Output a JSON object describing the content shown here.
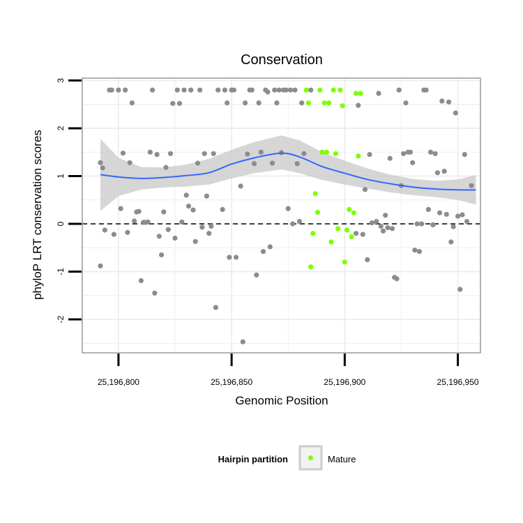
{
  "chart_data": {
    "type": "scatter",
    "title": "Conservation",
    "xlabel": "Genomic Position",
    "ylabel": "phyloP LRT conservation scores",
    "xlim": [
      25196784,
      25196960
    ],
    "ylim": [
      -2.7,
      3.05
    ],
    "xticks": [
      25196800,
      25196850,
      25196900,
      25196950
    ],
    "xtick_labels": [
      "25,196,800",
      "25,196,850",
      "25,196,900",
      "25,196,950"
    ],
    "yticks": [
      -2,
      -1,
      0,
      1,
      2,
      3
    ],
    "ytick_labels": [
      "-2",
      "-1",
      "0",
      "1",
      "2",
      "3"
    ],
    "reference_line": {
      "y": 0,
      "style": "dashed",
      "color": "#000000"
    },
    "legend": {
      "title": "Hairpin partition",
      "entries": [
        {
          "label": "Mature",
          "color": "#7fff00"
        }
      ],
      "position": "bottom"
    },
    "colors": {
      "other": "#8c8c8c",
      "mature": "#7fff00",
      "smooth_line": "#3366ff",
      "ribbon": "#cccccc",
      "panel_border": "#999999",
      "grid": "#ebebeb"
    },
    "smooth": {
      "x": [
        25196792,
        25196800,
        25196810,
        25196820,
        25196830,
        25196840,
        25196850,
        25196860,
        25196872,
        25196880,
        25196890,
        25196900,
        25196910,
        25196920,
        25196930,
        25196940,
        25196950,
        25196958
      ],
      "y": [
        1.03,
        0.98,
        0.95,
        0.97,
        1.01,
        1.07,
        1.25,
        1.38,
        1.48,
        1.4,
        1.2,
        1.06,
        0.93,
        0.84,
        0.77,
        0.73,
        0.71,
        0.71
      ],
      "lower": [
        0.27,
        0.58,
        0.72,
        0.76,
        0.78,
        0.82,
        0.95,
        1.06,
        1.14,
        1.06,
        0.92,
        0.82,
        0.74,
        0.66,
        0.6,
        0.56,
        0.5,
        0.4
      ],
      "upper": [
        1.78,
        1.38,
        1.19,
        1.18,
        1.24,
        1.36,
        1.55,
        1.71,
        1.85,
        1.75,
        1.5,
        1.32,
        1.16,
        1.03,
        0.94,
        0.9,
        0.93,
        1.02
      ]
    },
    "series": [
      {
        "name": "Other",
        "color": "#8c8c8c",
        "points": [
          [
            25196792,
            1.28
          ],
          [
            25196793,
            1.17
          ],
          [
            25196792,
            -0.88
          ],
          [
            25196794,
            -0.13
          ],
          [
            25196796,
            2.8
          ],
          [
            25196797,
            2.8
          ],
          [
            25196798,
            -0.22
          ],
          [
            25196800,
            2.8
          ],
          [
            25196801,
            0.32
          ],
          [
            25196802,
            1.48
          ],
          [
            25196803,
            2.8
          ],
          [
            25196804,
            -0.18
          ],
          [
            25196805,
            1.28
          ],
          [
            25196806,
            2.53
          ],
          [
            25196807,
            0.06
          ],
          [
            25196808,
            0.25
          ],
          [
            25196809,
            0.26
          ],
          [
            25196810,
            -1.19
          ],
          [
            25196811,
            0.03
          ],
          [
            25196812,
            0.03
          ],
          [
            25196813,
            0.04
          ],
          [
            25196814,
            1.5
          ],
          [
            25196815,
            2.8
          ],
          [
            25196816,
            -1.45
          ],
          [
            25196817,
            1.45
          ],
          [
            25196818,
            -0.26
          ],
          [
            25196819,
            -0.65
          ],
          [
            25196820,
            0.25
          ],
          [
            25196821,
            1.18
          ],
          [
            25196822,
            -0.12
          ],
          [
            25196823,
            1.47
          ],
          [
            25196824,
            2.52
          ],
          [
            25196825,
            -0.3
          ],
          [
            25196826,
            2.8
          ],
          [
            25196827,
            2.52
          ],
          [
            25196828,
            0.04
          ],
          [
            25196829,
            2.8
          ],
          [
            25196830,
            0.6
          ],
          [
            25196831,
            0.37
          ],
          [
            25196832,
            2.8
          ],
          [
            25196833,
            0.29
          ],
          [
            25196834,
            -0.37
          ],
          [
            25196835,
            1.27
          ],
          [
            25196836,
            2.8
          ],
          [
            25196837,
            -0.07
          ],
          [
            25196838,
            1.47
          ],
          [
            25196839,
            0.58
          ],
          [
            25196840,
            -0.2
          ],
          [
            25196841,
            -0.05
          ],
          [
            25196842,
            1.47
          ],
          [
            25196843,
            -1.75
          ],
          [
            25196844,
            2.8
          ],
          [
            25196846,
            0.3
          ],
          [
            25196847,
            2.8
          ],
          [
            25196848,
            2.53
          ],
          [
            25196849,
            -0.7
          ],
          [
            25196850,
            2.8
          ],
          [
            25196851,
            2.8
          ],
          [
            25196852,
            -0.7
          ],
          [
            25196854,
            0.79
          ],
          [
            25196855,
            -2.47
          ],
          [
            25196856,
            2.53
          ],
          [
            25196857,
            1.46
          ],
          [
            25196858,
            2.8
          ],
          [
            25196859,
            2.8
          ],
          [
            25196860,
            1.26
          ],
          [
            25196861,
            -1.07
          ],
          [
            25196862,
            2.53
          ],
          [
            25196863,
            1.5
          ],
          [
            25196864,
            -0.58
          ],
          [
            25196865,
            2.8
          ],
          [
            25196866,
            2.76
          ],
          [
            25196867,
            -0.48
          ],
          [
            25196868,
            1.27
          ],
          [
            25196869,
            2.8
          ],
          [
            25196870,
            2.53
          ],
          [
            25196871,
            2.8
          ],
          [
            25196872,
            1.49
          ],
          [
            25196873,
            2.8
          ],
          [
            25196874,
            2.8
          ],
          [
            25196875,
            0.32
          ],
          [
            25196876,
            2.8
          ],
          [
            25196877,
            0.0
          ],
          [
            25196878,
            2.8
          ],
          [
            25196879,
            1.26
          ],
          [
            25196880,
            0.05
          ],
          [
            25196881,
            2.53
          ],
          [
            25196882,
            1.47
          ],
          [
            25196885,
            2.8
          ],
          [
            25196890,
            1.5
          ],
          [
            25196905,
            -0.2
          ],
          [
            25196906,
            2.48
          ],
          [
            25196908,
            -0.22
          ],
          [
            25196909,
            0.72
          ],
          [
            25196910,
            -0.75
          ],
          [
            25196911,
            1.45
          ],
          [
            25196912,
            0.02
          ],
          [
            25196914,
            0.05
          ],
          [
            25196915,
            2.73
          ],
          [
            25196916,
            -0.05
          ],
          [
            25196917,
            -0.15
          ],
          [
            25196918,
            0.18
          ],
          [
            25196919,
            -0.08
          ],
          [
            25196920,
            1.37
          ],
          [
            25196921,
            -0.1
          ],
          [
            25196922,
            -1.12
          ],
          [
            25196923,
            -1.15
          ],
          [
            25196924,
            2.8
          ],
          [
            25196925,
            0.8
          ],
          [
            25196926,
            1.47
          ],
          [
            25196927,
            2.53
          ],
          [
            25196928,
            1.5
          ],
          [
            25196929,
            1.5
          ],
          [
            25196930,
            1.28
          ],
          [
            25196931,
            -0.55
          ],
          [
            25196932,
            0.0
          ],
          [
            25196933,
            -0.58
          ],
          [
            25196934,
            0.0
          ],
          [
            25196935,
            2.8
          ],
          [
            25196936,
            2.8
          ],
          [
            25196937,
            0.3
          ],
          [
            25196938,
            1.5
          ],
          [
            25196939,
            -0.02
          ],
          [
            25196940,
            1.47
          ],
          [
            25196941,
            1.07
          ],
          [
            25196942,
            0.23
          ],
          [
            25196943,
            2.57
          ],
          [
            25196944,
            1.1
          ],
          [
            25196945,
            0.2
          ],
          [
            25196946,
            2.55
          ],
          [
            25196947,
            -0.38
          ],
          [
            25196948,
            -0.06
          ],
          [
            25196949,
            2.32
          ],
          [
            25196950,
            0.16
          ],
          [
            25196951,
            -1.37
          ],
          [
            25196952,
            0.19
          ],
          [
            25196953,
            1.45
          ],
          [
            25196954,
            0.05
          ],
          [
            25196956,
            0.8
          ]
        ]
      },
      {
        "name": "Mature",
        "color": "#7fff00",
        "points": [
          [
            25196883,
            2.8
          ],
          [
            25196884,
            2.53
          ],
          [
            25196885,
            -0.9
          ],
          [
            25196886,
            -0.2
          ],
          [
            25196887,
            0.63
          ],
          [
            25196888,
            0.24
          ],
          [
            25196889,
            2.8
          ],
          [
            25196890,
            1.5
          ],
          [
            25196891,
            2.53
          ],
          [
            25196892,
            1.5
          ],
          [
            25196893,
            2.53
          ],
          [
            25196894,
            -0.38
          ],
          [
            25196895,
            2.8
          ],
          [
            25196896,
            1.47
          ],
          [
            25196897,
            -0.1
          ],
          [
            25196898,
            2.8
          ],
          [
            25196899,
            2.47
          ],
          [
            25196900,
            -0.8
          ],
          [
            25196901,
            -0.13
          ],
          [
            25196902,
            0.3
          ],
          [
            25196903,
            -0.27
          ],
          [
            25196904,
            0.23
          ],
          [
            25196905,
            2.73
          ],
          [
            25196906,
            1.42
          ],
          [
            25196907,
            2.73
          ]
        ]
      }
    ]
  }
}
